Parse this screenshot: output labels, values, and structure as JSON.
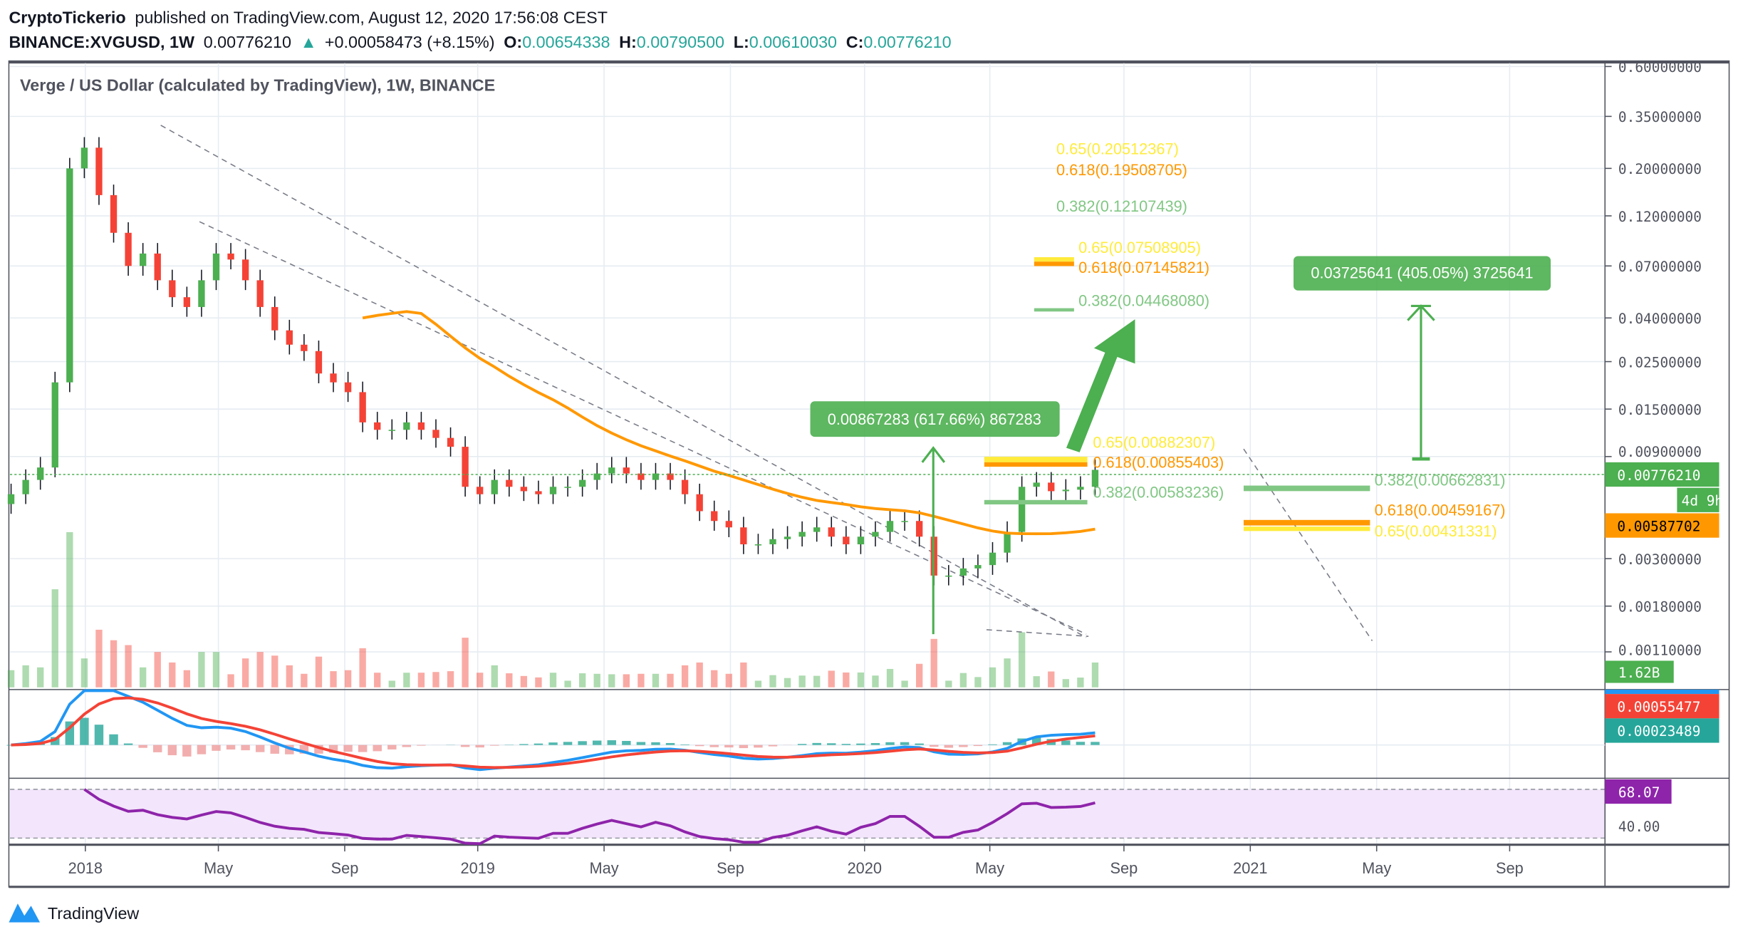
{
  "header": {
    "author": "CryptoTickerio",
    "published": "published on TradingView.com, August 12, 2020 17:56:08 CEST",
    "symbol": "BINANCE:XVGUSD, 1W",
    "last": "0.00776210",
    "change": "+0.00058473 (+8.15%)",
    "o_label": "O:",
    "o": "0.00654338",
    "h_label": "H:",
    "h": "0.00790500",
    "l_label": "L:",
    "l": "0.00610030",
    "c_label": "C:",
    "c": "0.00776210"
  },
  "chart_title": "Verge / US Dollar (calculated by TradingView), 1W, BINANCE",
  "price_axis": [
    "0.60000000",
    "0.35000000",
    "0.20000000",
    "0.12000000",
    "0.07000000",
    "0.04000000",
    "0.02500000",
    "0.01500000",
    "0.00900000",
    "0.00300000",
    "0.00180000",
    "0.00110000"
  ],
  "price_tags": {
    "last": "0.00776210",
    "countdown": "4d 9h",
    "ma": "0.00587702",
    "volume": "1.62B",
    "macd": "0.00055477",
    "signal": "0.00023489",
    "rsi": "68.07",
    "rsi_level": "40.00"
  },
  "time_axis": [
    "2018",
    "May",
    "Sep",
    "2019",
    "May",
    "Sep",
    "2020",
    "May",
    "Sep",
    "2021",
    "May",
    "Sep"
  ],
  "fib_labels": {
    "a_065": "0.65(0.20512367)",
    "a_0618": "0.618(0.19508705)",
    "a_0382": "0.382(0.12107439)",
    "b_065": "0.65(0.07508905)",
    "b_0618": "0.618(0.07145821)",
    "b_0382": "0.382(0.04468080)",
    "c_065": "0.65(0.00882307)",
    "c_0618": "0.618(0.00855403)",
    "c_0382": "0.382(0.00583236)",
    "d_0382": "0.382(0.00662831)",
    "d_0618": "0.618(0.00459167)",
    "d_065": "0.65(0.00431331)"
  },
  "measures": {
    "past": "0.00867283 (617.66%) 867283",
    "target": "0.03725641 (405.05%) 3725641"
  },
  "colors": {
    "up": "#4caf50",
    "down": "#f44336",
    "ma": "#ff9800",
    "fib_yellow": "#ffeb3b",
    "fib_green": "#81c784",
    "macd": "#2196f3",
    "signal": "#f44336",
    "rsi": "#8e24aa"
  },
  "footer": {
    "logo_text": "TradingView"
  },
  "chart_data": {
    "type": "candlestick",
    "symbol": "XVGUSD",
    "interval_of_samples": "2W",
    "start": "2017-11",
    "scale": "log",
    "ylim": [
      0.0011,
      0.6
    ],
    "approx_closes": [
      0.006,
      0.007,
      0.008,
      0.02,
      0.2,
      0.25,
      0.15,
      0.1,
      0.07,
      0.08,
      0.06,
      0.05,
      0.045,
      0.06,
      0.08,
      0.075,
      0.06,
      0.045,
      0.035,
      0.03,
      0.028,
      0.022,
      0.02,
      0.018,
      0.013,
      0.012,
      0.012,
      0.013,
      0.012,
      0.011,
      0.01,
      0.0065,
      0.006,
      0.007,
      0.0065,
      0.0062,
      0.006,
      0.0065,
      0.0065,
      0.007,
      0.0075,
      0.008,
      0.0075,
      0.007,
      0.0075,
      0.007,
      0.006,
      0.005,
      0.0045,
      0.0042,
      0.0035,
      0.0035,
      0.0037,
      0.0038,
      0.004,
      0.0042,
      0.0038,
      0.0035,
      0.0038,
      0.004,
      0.0045,
      0.0045,
      0.0038,
      0.0025,
      0.0025,
      0.0027,
      0.0028,
      0.0032,
      0.004,
      0.0065,
      0.0068,
      0.0062,
      0.0063,
      0.0065,
      0.0078
    ],
    "indicators": [
      "Volume",
      "MA",
      "MACD",
      "RSI"
    ]
  }
}
